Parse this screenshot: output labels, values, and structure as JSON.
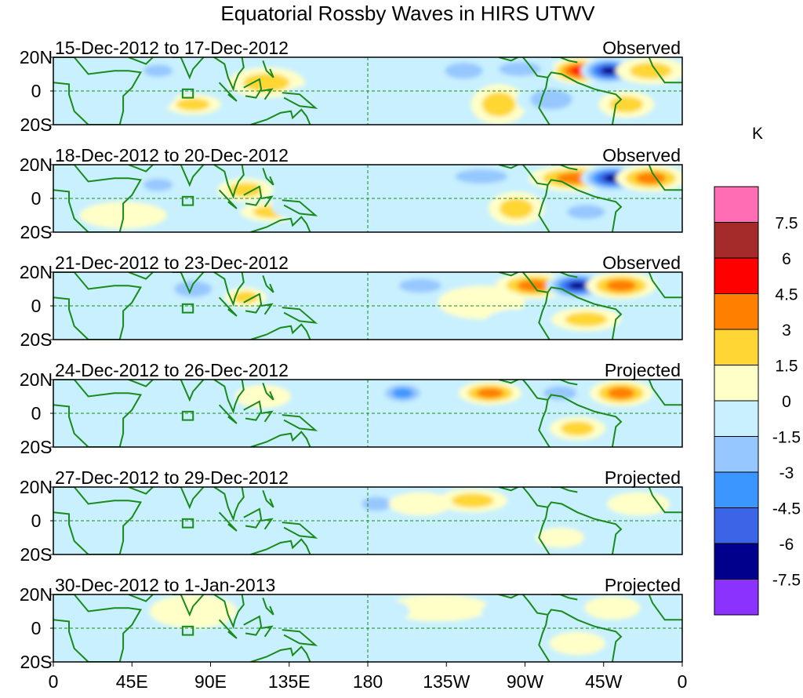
{
  "chart_data": {
    "type": "heatmap",
    "title": "Equatorial Rossby Waves in HIRS UTWV",
    "units": "K",
    "lat_range": [
      -20,
      20
    ],
    "lon_range": [
      0,
      360
    ],
    "y_ticks": [
      "20N",
      "0",
      "20S"
    ],
    "x_ticks": [
      "0",
      "45E",
      "90E",
      "135E",
      "180",
      "135W",
      "90W",
      "45W",
      "0"
    ],
    "colorbar": {
      "levels": [
        "7.5",
        "6",
        "4.5",
        "3",
        "1.5",
        "0",
        "-1.5",
        "-3",
        "-4.5",
        "-6",
        "-7.5"
      ],
      "colors": [
        "#ff6eb4",
        "#a52a2a",
        "#ff0000",
        "#ff7f00",
        "#ffd633",
        "#ffffc8",
        "#c8f0ff",
        "#96c8ff",
        "#3c96ff",
        "#3c64e6",
        "#00008c",
        "#8c32ff"
      ]
    },
    "panels": [
      {
        "period": "15-Dec-2012 to 17-Dec-2012",
        "status": "Observed",
        "anomalies": [
          {
            "lon": 302,
            "lat": 12,
            "value": 5,
            "rx": 18,
            "ry": 8
          },
          {
            "lon": 318,
            "lat": 12,
            "value": -7,
            "rx": 16,
            "ry": 8
          },
          {
            "lon": 342,
            "lat": 12,
            "value": 3,
            "rx": 20,
            "ry": 8
          },
          {
            "lon": 122,
            "lat": 5,
            "value": 3,
            "rx": 22,
            "ry": 9
          },
          {
            "lon": 255,
            "lat": -8,
            "value": 3,
            "rx": 16,
            "ry": 12
          },
          {
            "lon": 267,
            "lat": 13,
            "value": -3,
            "rx": 20,
            "ry": 7
          },
          {
            "lon": 235,
            "lat": 12,
            "value": -3,
            "rx": 18,
            "ry": 8
          },
          {
            "lon": 328,
            "lat": -8,
            "value": 3,
            "rx": 16,
            "ry": 8
          },
          {
            "lon": 285,
            "lat": -5,
            "value": -3,
            "rx": 20,
            "ry": 10
          },
          {
            "lon": 60,
            "lat": 12,
            "value": -3,
            "rx": 14,
            "ry": 6
          },
          {
            "lon": 80,
            "lat": -8,
            "value": 3,
            "rx": 16,
            "ry": 6
          },
          {
            "lon": 40,
            "lat": -3,
            "value": -1.5,
            "rx": 30,
            "ry": 12
          },
          {
            "lon": 160,
            "lat": -5,
            "value": -1.5,
            "rx": 30,
            "ry": 10
          }
        ]
      },
      {
        "period": "18-Dec-2012 to 20-Dec-2012",
        "status": "Observed",
        "anomalies": [
          {
            "lon": 300,
            "lat": 12,
            "value": 4.5,
            "rx": 28,
            "ry": 8
          },
          {
            "lon": 320,
            "lat": 12,
            "value": -7,
            "rx": 18,
            "ry": 8
          },
          {
            "lon": 342,
            "lat": 12,
            "value": 4.5,
            "rx": 20,
            "ry": 8
          },
          {
            "lon": 110,
            "lat": 5,
            "value": 3,
            "rx": 16,
            "ry": 7
          },
          {
            "lon": 125,
            "lat": -8,
            "value": 3,
            "rx": 18,
            "ry": 6
          },
          {
            "lon": 245,
            "lat": 13,
            "value": -3,
            "rx": 25,
            "ry": 7
          },
          {
            "lon": 265,
            "lat": -6,
            "value": 3,
            "rx": 16,
            "ry": 10
          },
          {
            "lon": 305,
            "lat": -8,
            "value": -3,
            "rx": 18,
            "ry": 7
          },
          {
            "lon": 60,
            "lat": 8,
            "value": -3,
            "rx": 14,
            "ry": 6
          },
          {
            "lon": 155,
            "lat": -5,
            "value": -1.5,
            "rx": 30,
            "ry": 10
          },
          {
            "lon": 40,
            "lat": -10,
            "value": 1.5,
            "rx": 25,
            "ry": 8
          }
        ]
      },
      {
        "period": "21-Dec-2012 to 23-Dec-2012",
        "status": "Observed",
        "anomalies": [
          {
            "lon": 275,
            "lat": 12,
            "value": 4.5,
            "rx": 22,
            "ry": 8
          },
          {
            "lon": 300,
            "lat": 12,
            "value": -7,
            "rx": 18,
            "ry": 8
          },
          {
            "lon": 325,
            "lat": 12,
            "value": 4.5,
            "rx": 20,
            "ry": 8
          },
          {
            "lon": 110,
            "lat": 5,
            "value": 3,
            "rx": 12,
            "ry": 6
          },
          {
            "lon": 210,
            "lat": 12,
            "value": -3,
            "rx": 20,
            "ry": 7
          },
          {
            "lon": 305,
            "lat": -8,
            "value": 3,
            "rx": 20,
            "ry": 7
          },
          {
            "lon": 245,
            "lat": 2,
            "value": 1.5,
            "rx": 25,
            "ry": 10
          },
          {
            "lon": 80,
            "lat": 10,
            "value": -3,
            "rx": 18,
            "ry": 8
          },
          {
            "lon": 155,
            "lat": -5,
            "value": -1.5,
            "rx": 25,
            "ry": 10
          },
          {
            "lon": 265,
            "lat": -10,
            "value": -1.5,
            "rx": 18,
            "ry": 8
          }
        ]
      },
      {
        "period": "24-Dec-2012 to 26-Dec-2012",
        "status": "Projected",
        "anomalies": [
          {
            "lon": 250,
            "lat": 12,
            "value": 4.5,
            "rx": 18,
            "ry": 7
          },
          {
            "lon": 325,
            "lat": 12,
            "value": 4.5,
            "rx": 18,
            "ry": 8
          },
          {
            "lon": 200,
            "lat": 12,
            "value": -4.5,
            "rx": 14,
            "ry": 7
          },
          {
            "lon": 290,
            "lat": 12,
            "value": -3,
            "rx": 16,
            "ry": 7
          },
          {
            "lon": 300,
            "lat": -9,
            "value": 3,
            "rx": 16,
            "ry": 7
          },
          {
            "lon": 85,
            "lat": 12,
            "value": -1.5,
            "rx": 16,
            "ry": 7
          },
          {
            "lon": 120,
            "lat": 10,
            "value": 1.5,
            "rx": 16,
            "ry": 7
          },
          {
            "lon": 245,
            "lat": -5,
            "value": -1.5,
            "rx": 25,
            "ry": 10
          }
        ]
      },
      {
        "period": "27-Dec-2012 to 29-Dec-2012",
        "status": "Projected",
        "anomalies": [
          {
            "lon": 240,
            "lat": 12,
            "value": 3,
            "rx": 20,
            "ry": 7
          },
          {
            "lon": 185,
            "lat": 10,
            "value": -3,
            "rx": 14,
            "ry": 7
          },
          {
            "lon": 210,
            "lat": 10,
            "value": 1.5,
            "rx": 18,
            "ry": 7
          },
          {
            "lon": 300,
            "lat": 12,
            "value": -1.5,
            "rx": 18,
            "ry": 7
          },
          {
            "lon": 335,
            "lat": 10,
            "value": 1.5,
            "rx": 18,
            "ry": 7
          },
          {
            "lon": 290,
            "lat": -10,
            "value": 1.5,
            "rx": 14,
            "ry": 6
          },
          {
            "lon": 80,
            "lat": 12,
            "value": -1.5,
            "rx": 14,
            "ry": 6
          },
          {
            "lon": 150,
            "lat": -8,
            "value": -1.5,
            "rx": 30,
            "ry": 8
          }
        ]
      },
      {
        "period": "30-Dec-2012 to 1-Jan-2013",
        "status": "Projected",
        "anomalies": [
          {
            "lon": 220,
            "lat": 12,
            "value": 1.5,
            "rx": 30,
            "ry": 8
          },
          {
            "lon": 190,
            "lat": 10,
            "value": -1.5,
            "rx": 14,
            "ry": 7
          },
          {
            "lon": 270,
            "lat": 10,
            "value": -1.5,
            "rx": 25,
            "ry": 8
          },
          {
            "lon": 320,
            "lat": 12,
            "value": 1.5,
            "rx": 16,
            "ry": 7
          },
          {
            "lon": 300,
            "lat": -9,
            "value": 1.5,
            "rx": 16,
            "ry": 7
          },
          {
            "lon": 80,
            "lat": 10,
            "value": 1.5,
            "rx": 25,
            "ry": 10
          },
          {
            "lon": 140,
            "lat": -5,
            "value": -1.5,
            "rx": 20,
            "ry": 8
          }
        ]
      }
    ]
  }
}
